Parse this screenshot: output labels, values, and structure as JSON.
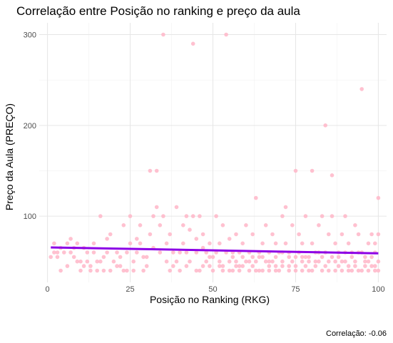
{
  "chart_data": {
    "type": "scatter",
    "title": "Correlação entre Posição no ranking e preço da aula",
    "xlabel": "Posição no Ranking (RKG)",
    "ylabel": "Preço da Aula (PREÇO)",
    "caption": "Correlação:  -0.06",
    "xlim": [
      -2.5,
      102.5
    ],
    "ylim": [
      27,
      313
    ],
    "x_ticks": [
      0,
      25,
      50,
      75,
      100
    ],
    "y_ticks": [
      100,
      200,
      300
    ],
    "grid": true,
    "point_color": "#ffb6c8",
    "line_color": "#8c00e6",
    "trend_line": {
      "x": [
        1,
        100
      ],
      "y": [
        65.5,
        59
      ]
    },
    "series": [
      {
        "points": [
          [
            1,
            55
          ],
          [
            2,
            60
          ],
          [
            2,
            70
          ],
          [
            3,
            60
          ],
          [
            4,
            40
          ],
          [
            4,
            65
          ],
          [
            5,
            60
          ],
          [
            6,
            45
          ],
          [
            6,
            70
          ],
          [
            7,
            60
          ],
          [
            7,
            75
          ],
          [
            8,
            65
          ],
          [
            9,
            50
          ],
          [
            9,
            70
          ],
          [
            10,
            40
          ],
          [
            10,
            50
          ],
          [
            11,
            65
          ],
          [
            12,
            60
          ],
          [
            12,
            50
          ],
          [
            13,
            40
          ],
          [
            13,
            45
          ],
          [
            14,
            60
          ],
          [
            14,
            70
          ],
          [
            15,
            50
          ],
          [
            15,
            40
          ],
          [
            16,
            100
          ],
          [
            16,
            50
          ],
          [
            17,
            40
          ],
          [
            18,
            75
          ],
          [
            18,
            60
          ],
          [
            19,
            80
          ],
          [
            19,
            40
          ],
          [
            20,
            50
          ],
          [
            21,
            45
          ],
          [
            21,
            60
          ],
          [
            22,
            55
          ],
          [
            23,
            40
          ],
          [
            23,
            90
          ],
          [
            24,
            40
          ],
          [
            24,
            60
          ],
          [
            25,
            100
          ],
          [
            25,
            70
          ],
          [
            26,
            40
          ],
          [
            26,
            50
          ],
          [
            27,
            75
          ],
          [
            27,
            60
          ],
          [
            28,
            90
          ],
          [
            29,
            40
          ],
          [
            30,
            55
          ],
          [
            30,
            45
          ],
          [
            31,
            150
          ],
          [
            31,
            80
          ],
          [
            32,
            65
          ],
          [
            32,
            100
          ],
          [
            33,
            150
          ],
          [
            33,
            110
          ],
          [
            34,
            60
          ],
          [
            34,
            90
          ],
          [
            35,
            300
          ],
          [
            35,
            100
          ],
          [
            36,
            70
          ],
          [
            37,
            40
          ],
          [
            37,
            80
          ],
          [
            38,
            60
          ],
          [
            38,
            45
          ],
          [
            39,
            50
          ],
          [
            39,
            110
          ],
          [
            40,
            40
          ],
          [
            41,
            70
          ],
          [
            41,
            90
          ],
          [
            42,
            60
          ],
          [
            42,
            100
          ],
          [
            43,
            85
          ],
          [
            43,
            50
          ],
          [
            44,
            290
          ],
          [
            44,
            100
          ],
          [
            45,
            60
          ],
          [
            45,
            75
          ],
          [
            46,
            40
          ],
          [
            46,
            100
          ],
          [
            47,
            80
          ],
          [
            48,
            60
          ],
          [
            48,
            50
          ],
          [
            49,
            70
          ],
          [
            49,
            55
          ],
          [
            50,
            40
          ],
          [
            51,
            60
          ],
          [
            51,
            100
          ],
          [
            52,
            50
          ],
          [
            52,
            70
          ],
          [
            53,
            40
          ],
          [
            53,
            90
          ],
          [
            54,
            300
          ],
          [
            54,
            60
          ],
          [
            55,
            50
          ],
          [
            55,
            75
          ],
          [
            56,
            40
          ],
          [
            56,
            60
          ],
          [
            57,
            50
          ],
          [
            57,
            80
          ],
          [
            58,
            60
          ],
          [
            58,
            40
          ],
          [
            59,
            70
          ],
          [
            59,
            45
          ],
          [
            60,
            50
          ],
          [
            60,
            90
          ],
          [
            61,
            40
          ],
          [
            61,
            60
          ],
          [
            62,
            80
          ],
          [
            62,
            55
          ],
          [
            63,
            50
          ],
          [
            63,
            120
          ],
          [
            64,
            60
          ],
          [
            64,
            40
          ],
          [
            65,
            70
          ],
          [
            66,
            50
          ],
          [
            66,
            90
          ],
          [
            67,
            40
          ],
          [
            67,
            60
          ],
          [
            68,
            80
          ],
          [
            68,
            50
          ],
          [
            69,
            45
          ],
          [
            69,
            70
          ],
          [
            70,
            60
          ],
          [
            70,
            40
          ],
          [
            71,
            100
          ],
          [
            71,
            50
          ],
          [
            72,
            70
          ],
          [
            72,
            110
          ],
          [
            73,
            40
          ],
          [
            73,
            60
          ],
          [
            74,
            90
          ],
          [
            74,
            50
          ],
          [
            75,
            150
          ],
          [
            75,
            45
          ],
          [
            76,
            80
          ],
          [
            76,
            60
          ],
          [
            77,
            40
          ],
          [
            77,
            70
          ],
          [
            78,
            55
          ],
          [
            78,
            100
          ],
          [
            79,
            50
          ],
          [
            79,
            40
          ],
          [
            80,
            150
          ],
          [
            80,
            70
          ],
          [
            81,
            60
          ],
          [
            81,
            45
          ],
          [
            82,
            90
          ],
          [
            82,
            50
          ],
          [
            83,
            40
          ],
          [
            83,
            100
          ],
          [
            84,
            200
          ],
          [
            84,
            60
          ],
          [
            85,
            50
          ],
          [
            85,
            80
          ],
          [
            86,
            145
          ],
          [
            86,
            100
          ],
          [
            87,
            40
          ],
          [
            87,
            70
          ],
          [
            88,
            55
          ],
          [
            88,
            60
          ],
          [
            89,
            80
          ],
          [
            89,
            40
          ],
          [
            90,
            50
          ],
          [
            90,
            100
          ],
          [
            91,
            70
          ],
          [
            91,
            45
          ],
          [
            92,
            60
          ],
          [
            92,
            40
          ],
          [
            93,
            90
          ],
          [
            93,
            50
          ],
          [
            94,
            80
          ],
          [
            94,
            40
          ],
          [
            95,
            240
          ],
          [
            95,
            60
          ],
          [
            96,
            50
          ],
          [
            96,
            45
          ],
          [
            97,
            70
          ],
          [
            97,
            40
          ],
          [
            98,
            80
          ],
          [
            98,
            55
          ],
          [
            99,
            60
          ],
          [
            99,
            40
          ],
          [
            100,
            120
          ],
          [
            100,
            50
          ],
          [
            100,
            80
          ],
          [
            100,
            40
          ],
          [
            3,
            55
          ],
          [
            8,
            55
          ],
          [
            11,
            45
          ],
          [
            17,
            55
          ],
          [
            22,
            45
          ],
          [
            28,
            70
          ],
          [
            29,
            55
          ],
          [
            36,
            50
          ],
          [
            40,
            60
          ],
          [
            42,
            45
          ],
          [
            47,
            45
          ],
          [
            50,
            55
          ],
          [
            52,
            45
          ],
          [
            56,
            55
          ],
          [
            58,
            45
          ],
          [
            62,
            45
          ],
          [
            64,
            55
          ],
          [
            65,
            40
          ],
          [
            67,
            50
          ],
          [
            69,
            55
          ],
          [
            71,
            60
          ],
          [
            73,
            45
          ],
          [
            75,
            55
          ],
          [
            77,
            50
          ],
          [
            78,
            45
          ],
          [
            80,
            40
          ],
          [
            82,
            60
          ],
          [
            84,
            45
          ],
          [
            86,
            55
          ],
          [
            88,
            45
          ],
          [
            90,
            60
          ],
          [
            92,
            55
          ],
          [
            94,
            60
          ],
          [
            96,
            55
          ],
          [
            98,
            45
          ],
          [
            99,
            70
          ],
          [
            45,
            40
          ],
          [
            47,
            65
          ],
          [
            49,
            45
          ],
          [
            53,
            45
          ],
          [
            55,
            40
          ],
          [
            57,
            45
          ],
          [
            59,
            55
          ],
          [
            61,
            50
          ],
          [
            63,
            40
          ],
          [
            65,
            55
          ],
          [
            67,
            45
          ],
          [
            69,
            40
          ],
          [
            71,
            45
          ],
          [
            73,
            55
          ],
          [
            75,
            40
          ],
          [
            77,
            55
          ],
          [
            79,
            55
          ],
          [
            81,
            50
          ],
          [
            83,
            55
          ],
          [
            85,
            40
          ],
          [
            87,
            50
          ],
          [
            89,
            50
          ],
          [
            91,
            40
          ],
          [
            93,
            45
          ],
          [
            95,
            40
          ],
          [
            97,
            50
          ],
          [
            99,
            45
          ]
        ]
      }
    ]
  }
}
